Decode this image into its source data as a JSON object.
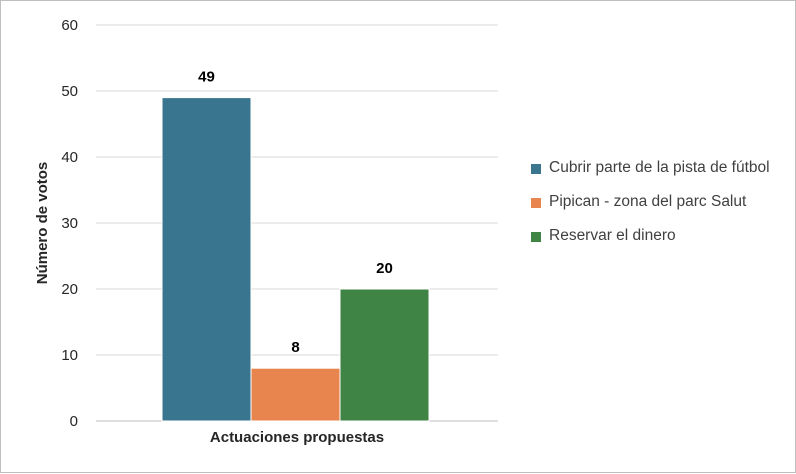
{
  "chart_data": {
    "type": "bar",
    "categories": [
      "Actuaciones propuestas"
    ],
    "series": [
      {
        "name": "Cubrir parte de la pista de fútbol",
        "values": [
          49
        ],
        "color": "#3a7590"
      },
      {
        "name": "Pipican - zona del parc Salut",
        "values": [
          8
        ],
        "color": "#e8854f"
      },
      {
        "name": "Reservar el dinero",
        "values": [
          20
        ],
        "color": "#3f8345"
      }
    ],
    "title": "",
    "xlabel": "Actuaciones propuestas",
    "ylabel": "Número de votos",
    "ylim": [
      0,
      60
    ],
    "yticks": [
      0,
      10,
      20,
      30,
      40,
      50,
      60
    ],
    "grid": true,
    "legend": "right"
  }
}
